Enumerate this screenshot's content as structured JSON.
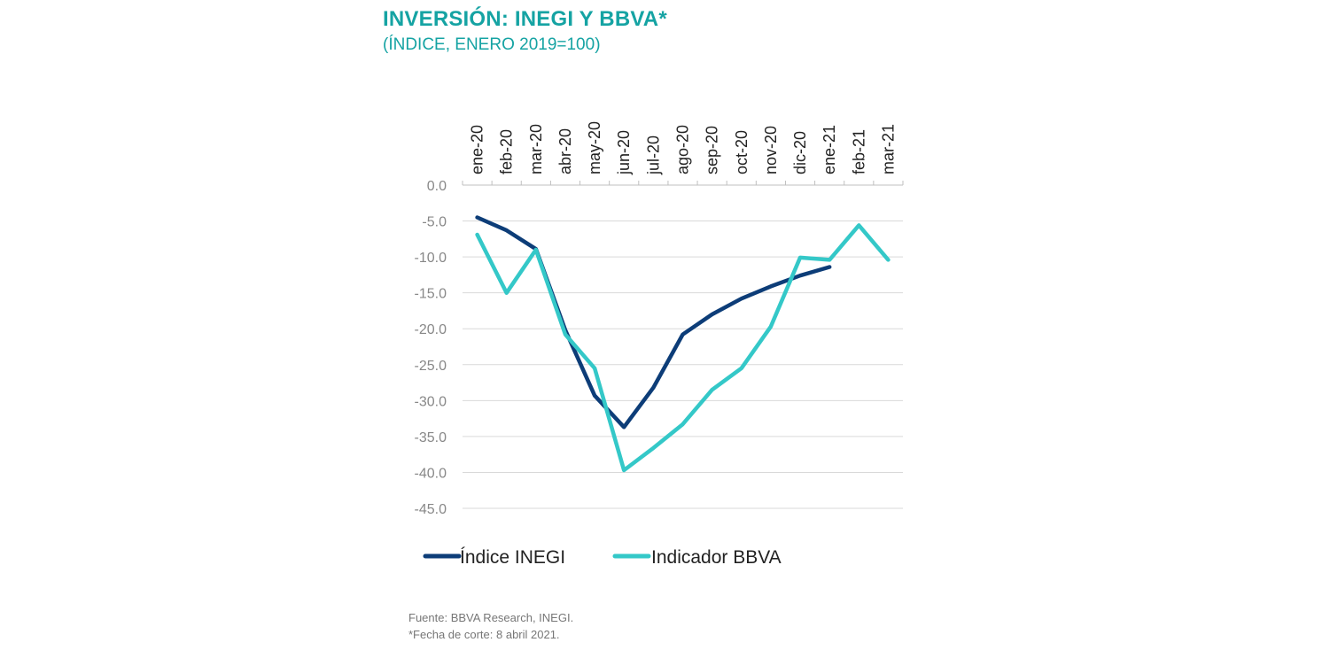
{
  "title": "INVERSIÓN: INEGI Y BBVA*",
  "subtitle": "(ÍNDICE, ENERO 2019=100)",
  "footnote_source": "Fuente: BBVA Research, INEGI.",
  "footnote_date": "*Fecha de corte: 8 abril 2021.",
  "colors": {
    "title": "#15a3a3",
    "inegi": "#0d3d78",
    "bbva": "#34c8c8",
    "grid": "#d9d9d9"
  },
  "chart_data": {
    "type": "line",
    "categories": [
      "ene-20",
      "feb-20",
      "mar-20",
      "abr-20",
      "may-20",
      "jun-20",
      "jul-20",
      "ago-20",
      "sep-20",
      "oct-20",
      "nov-20",
      "dic-20",
      "ene-21",
      "feb-21",
      "mar-21"
    ],
    "ylim": [
      -45,
      0
    ],
    "yticks": [
      0,
      -5,
      -10,
      -15,
      -20,
      -25,
      -30,
      -35,
      -40,
      -45
    ],
    "ytick_labels": [
      "0.0",
      "-5.0",
      "-10.0",
      "-15.0",
      "-20.0",
      "-25.0",
      "-30.0",
      "-35.0",
      "-40.0",
      "-45.0"
    ],
    "x_axis_position": "top",
    "grid": true,
    "legend_position": "bottom",
    "series": [
      {
        "name": "Índice INEGI",
        "color": "#0d3d78",
        "values": [
          -4.5,
          -6.3,
          -8.9,
          -20.2,
          -29.3,
          -33.7,
          -28.2,
          -20.8,
          -18.0,
          -15.8,
          -14.1,
          -12.6,
          -11.4,
          null,
          null
        ]
      },
      {
        "name": "Indicador BBVA",
        "color": "#34c8c8",
        "values": [
          -6.9,
          -15.0,
          -9.0,
          -20.8,
          -25.5,
          -39.7,
          -36.6,
          -33.3,
          -28.5,
          -25.5,
          -19.7,
          -10.1,
          -10.4,
          -5.6,
          -10.4
        ]
      }
    ]
  }
}
